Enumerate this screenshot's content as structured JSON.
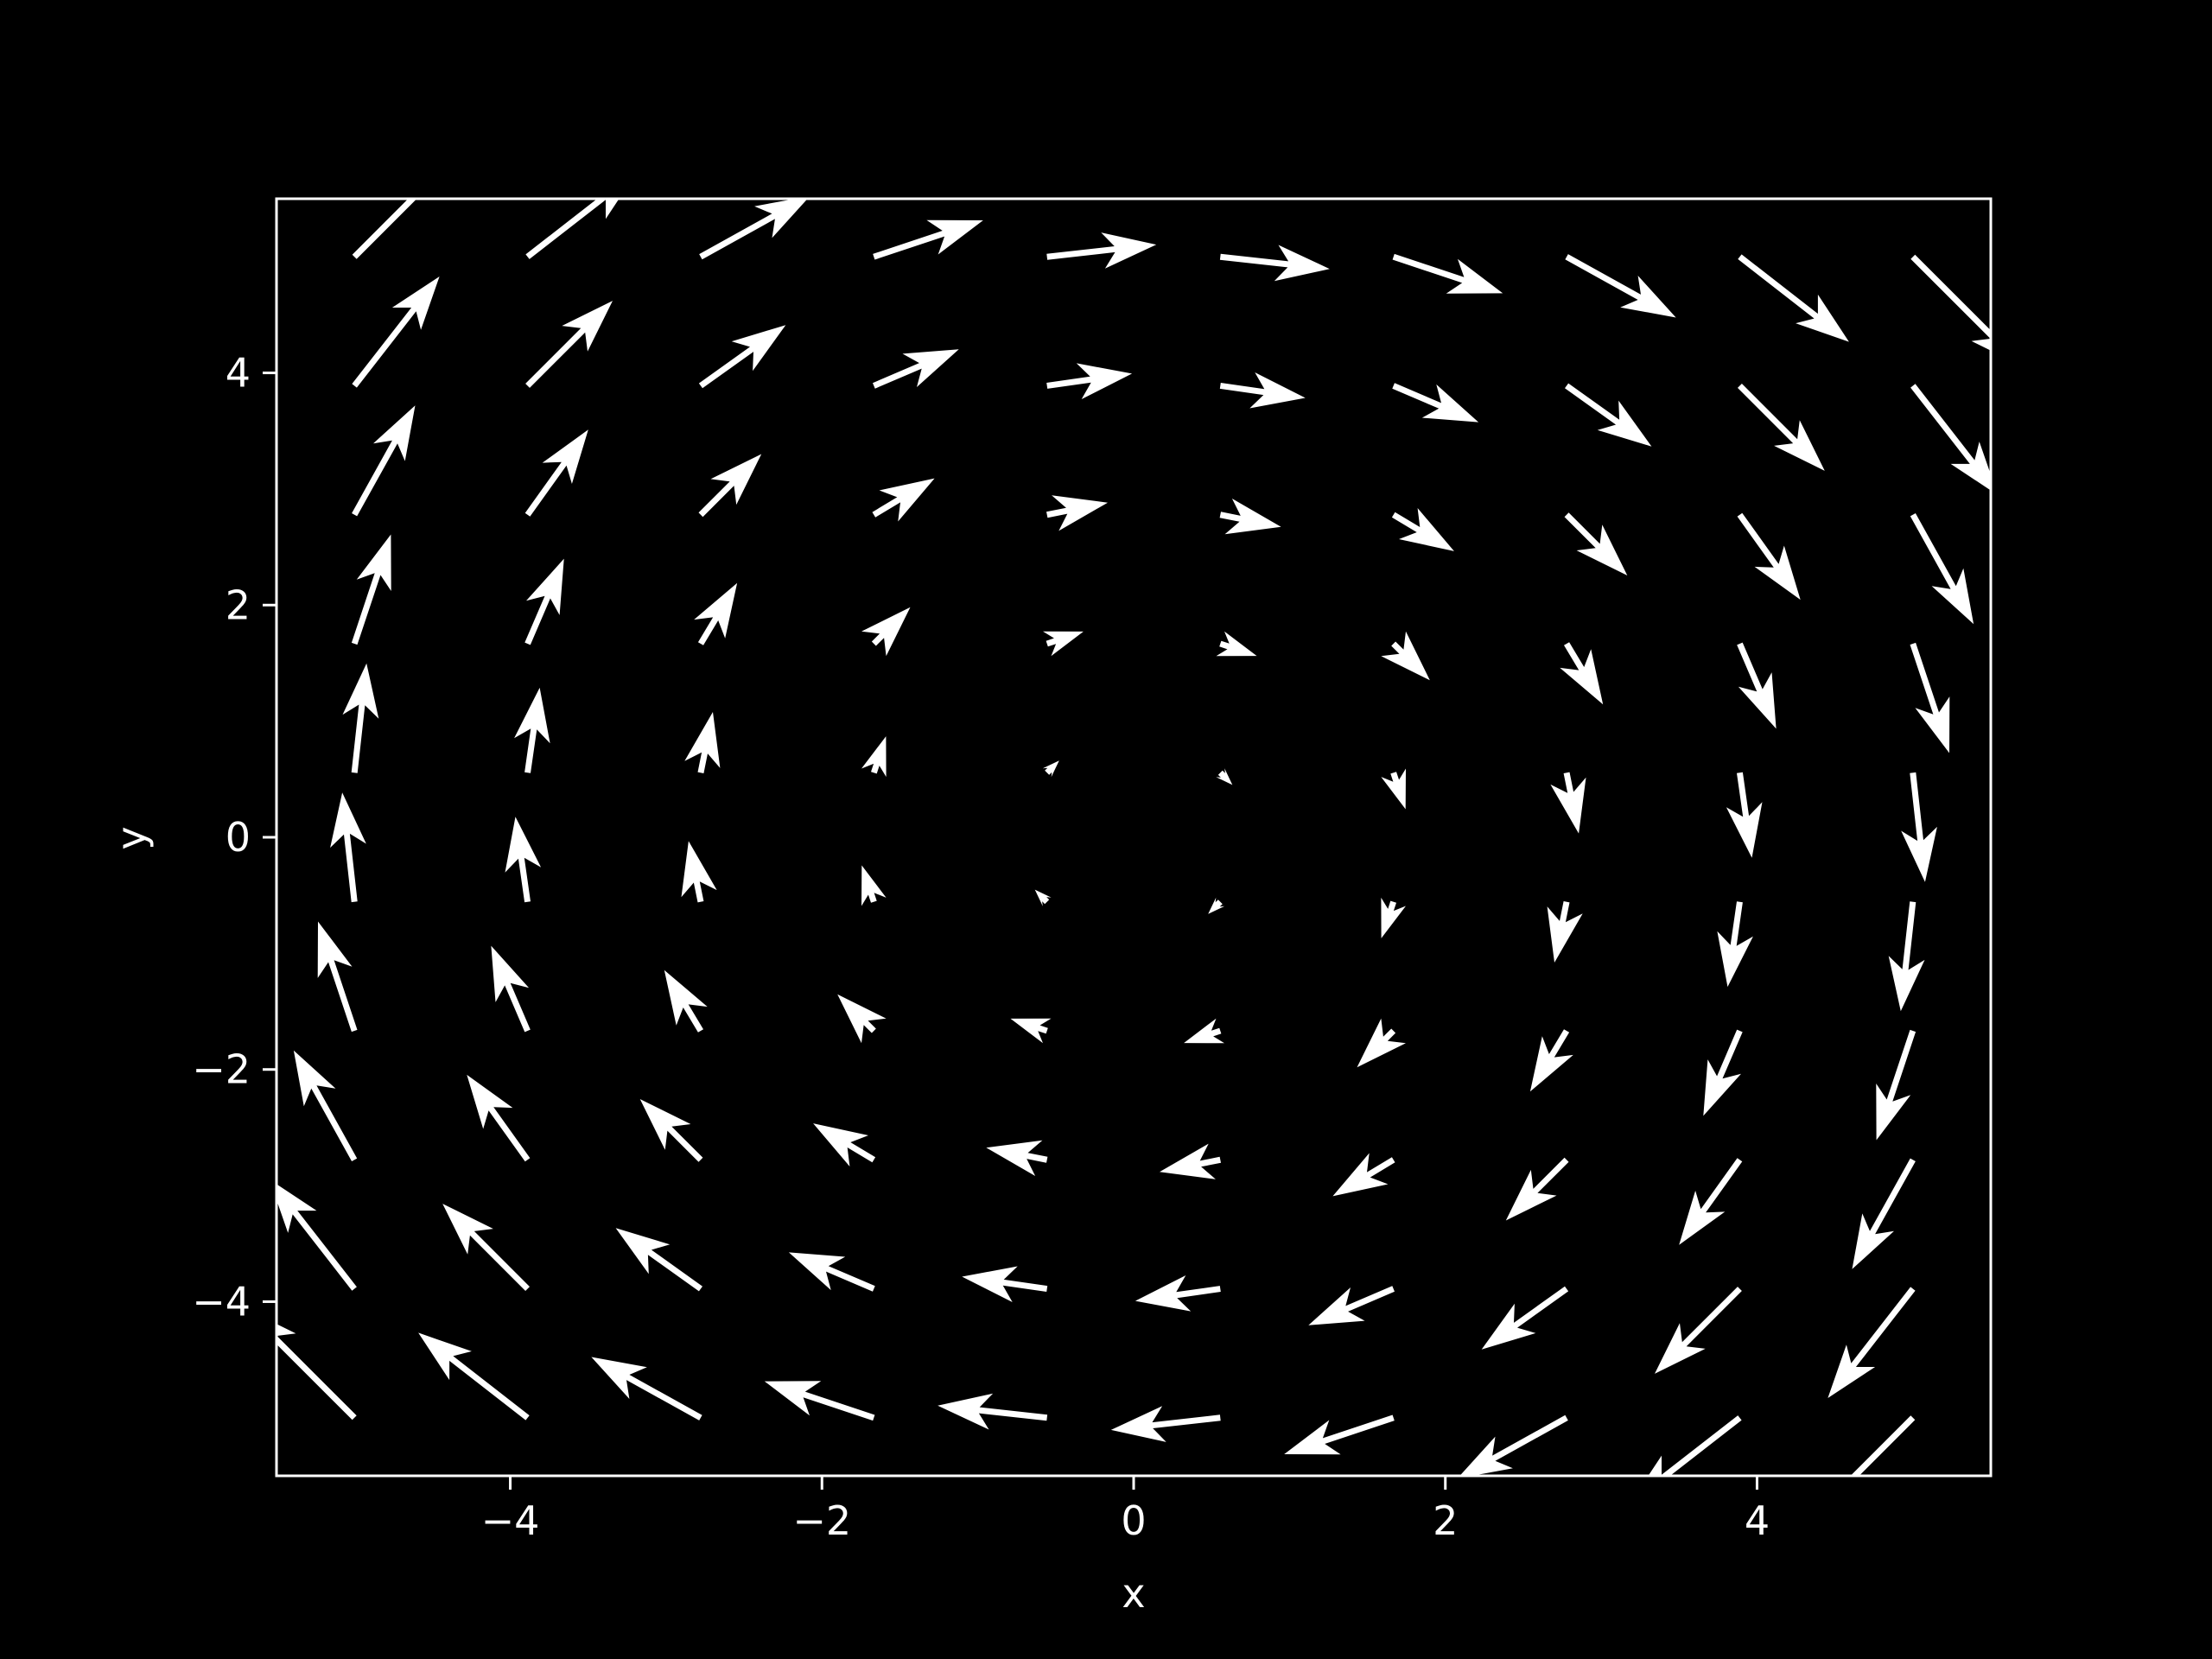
{
  "colors": {
    "background": "#000000",
    "axes": "#ffffff",
    "arrows": "#ffffff"
  },
  "chart_data": {
    "type": "quiver",
    "xlabel": "x",
    "ylabel": "y",
    "xlim": [
      -5.5,
      5.5
    ],
    "ylim": [
      -5.5,
      5.5
    ],
    "x_ticks": [
      -4,
      -2,
      0,
      2,
      4
    ],
    "y_ticks": [
      -4,
      -2,
      0,
      2,
      4
    ],
    "x_tick_labels": [
      "−4",
      "−2",
      "0",
      "2",
      "4"
    ],
    "y_tick_labels": [
      "−4",
      "−2",
      "0",
      "2",
      "4"
    ],
    "grid": false,
    "legend": "none",
    "grid_x": [
      -5,
      -3.889,
      -2.778,
      -1.667,
      -0.556,
      0.556,
      1.667,
      2.778,
      3.889,
      5
    ],
    "grid_y": [
      -5,
      -3.889,
      -2.778,
      -1.667,
      -0.556,
      0.556,
      1.667,
      2.778,
      3.889,
      5
    ],
    "field": "u = y, v = -x"
  }
}
